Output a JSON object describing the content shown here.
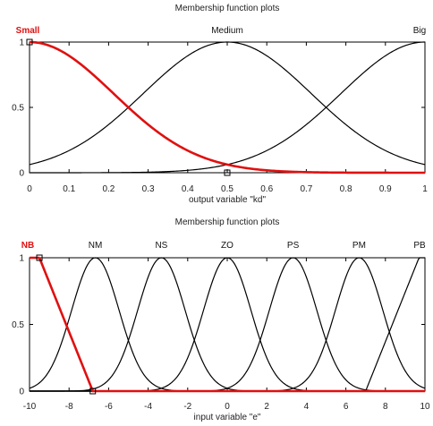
{
  "chart_data": [
    {
      "type": "line",
      "title": "Membership function plots",
      "xlabel": "output variable \"kd\"",
      "ylabel": "",
      "xlim": [
        0,
        1
      ],
      "ylim": [
        0,
        1
      ],
      "xticks": [
        0,
        0.1,
        0.2,
        0.3,
        0.4,
        0.5,
        0.6,
        0.7,
        0.8,
        0.9,
        1
      ],
      "xtick_labels": [
        "0",
        "0.1",
        "0.2",
        "0.3",
        "0.4",
        "0.5",
        "0.6",
        "0.7",
        "0.8",
        "0.9",
        "1"
      ],
      "yticks": [
        0,
        0.5,
        1
      ],
      "ytick_labels": [
        "0",
        "0.5",
        "1"
      ],
      "grid": false,
      "selected_series": "Small",
      "colors": {
        "selected": "#e01010",
        "normal": "#000000"
      },
      "series": [
        {
          "name": "Small",
          "shape": "gaussian",
          "mean": 0,
          "sigma": 0.2123,
          "label_x": 0
        },
        {
          "name": "Medium",
          "shape": "gaussian",
          "mean": 0.5,
          "sigma": 0.2123,
          "label_x": 0.5
        },
        {
          "name": "Big",
          "shape": "gaussian",
          "mean": 1,
          "sigma": 0.2123,
          "label_x": 1
        }
      ]
    },
    {
      "type": "line",
      "title": "Membership function plots",
      "xlabel": "input variable \"e\"",
      "ylabel": "",
      "xlim": [
        -10,
        10
      ],
      "ylim": [
        0,
        1
      ],
      "xticks": [
        -10,
        -8,
        -6,
        -4,
        -2,
        0,
        2,
        4,
        6,
        8,
        10
      ],
      "xtick_labels": [
        "-10",
        "-8",
        "-6",
        "-4",
        "-2",
        "0",
        "2",
        "4",
        "6",
        "8",
        "10"
      ],
      "yticks": [
        0,
        0.5,
        1
      ],
      "ytick_labels": [
        "0",
        "0.5",
        "1"
      ],
      "grid": false,
      "selected_series": "NB",
      "colors": {
        "selected": "#e01010",
        "normal": "#000000"
      },
      "series": [
        {
          "name": "NB",
          "shape": "zmf",
          "a": -9.5,
          "b": -6.8,
          "label_x": -10
        },
        {
          "name": "NM",
          "shape": "gaussian",
          "mean": -6.67,
          "sigma": 1.2,
          "label_x": -6.67
        },
        {
          "name": "NS",
          "shape": "gaussian",
          "mean": -3.33,
          "sigma": 1.2,
          "label_x": -3.33
        },
        {
          "name": "ZO",
          "shape": "gaussian",
          "mean": 0,
          "sigma": 1.2,
          "label_x": 0
        },
        {
          "name": "PS",
          "shape": "gaussian",
          "mean": 3.33,
          "sigma": 1.2,
          "label_x": 3.33
        },
        {
          "name": "PM",
          "shape": "gaussian",
          "mean": 6.67,
          "sigma": 1.2,
          "label_x": 6.67
        },
        {
          "name": "PB",
          "shape": "smf",
          "a": 7.0,
          "b": 9.7,
          "label_x": 10
        }
      ]
    }
  ]
}
